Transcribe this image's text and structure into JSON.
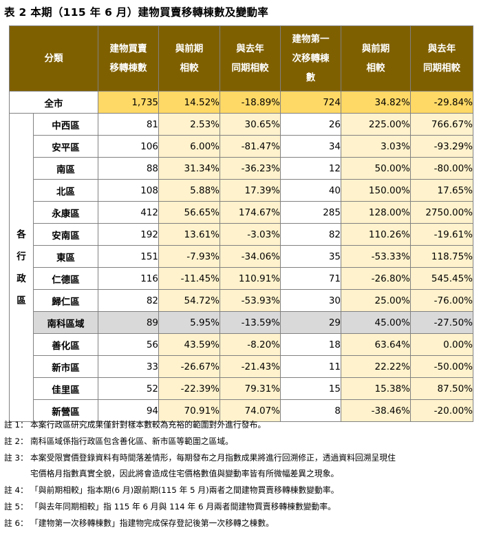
{
  "title": "表 2 本期（115 年 6 月）建物買賣移轉棟數及變動率",
  "header": {
    "category": "分類",
    "c1": [
      "建物買賣",
      "移轉棟數"
    ],
    "c2": [
      "與前期",
      "相較"
    ],
    "c3": [
      "與去年",
      "同期相較"
    ],
    "c4": [
      "建物第一",
      "次移轉棟",
      "數"
    ],
    "c5": [
      "與前期",
      "相較"
    ],
    "c6": [
      "與去年",
      "同期相較"
    ]
  },
  "group_label": [
    "各",
    "行",
    "政",
    "區"
  ],
  "total": {
    "name": "全市",
    "v1": "1,735",
    "v2": "14.52%",
    "v3": "-18.89%",
    "v4": "724",
    "v5": "34.82%",
    "v6": "-29.84%"
  },
  "rows": [
    {
      "name": "中西區",
      "v1": "81",
      "v2": "2.53%",
      "v3": "30.65%",
      "v4": "26",
      "v5": "225.00%",
      "v6": "766.67%"
    },
    {
      "name": "安平區",
      "v1": "106",
      "v2": "6.00%",
      "v3": "-81.47%",
      "v4": "34",
      "v5": "3.03%",
      "v6": "-93.29%"
    },
    {
      "name": "南區",
      "v1": "88",
      "v2": "31.34%",
      "v3": "-36.23%",
      "v4": "12",
      "v5": "50.00%",
      "v6": "-80.00%"
    },
    {
      "name": "北區",
      "v1": "108",
      "v2": "5.88%",
      "v3": "17.39%",
      "v4": "40",
      "v5": "150.00%",
      "v6": "17.65%"
    },
    {
      "name": "永康區",
      "v1": "412",
      "v2": "56.65%",
      "v3": "174.67%",
      "v4": "285",
      "v5": "128.00%",
      "v6": "2750.00%"
    },
    {
      "name": "安南區",
      "v1": "192",
      "v2": "13.61%",
      "v3": "-3.03%",
      "v4": "82",
      "v5": "110.26%",
      "v6": "-19.61%"
    },
    {
      "name": "東區",
      "v1": "151",
      "v2": "-7.93%",
      "v3": "-34.06%",
      "v4": "35",
      "v5": "-53.33%",
      "v6": "118.75%"
    },
    {
      "name": "仁德區",
      "v1": "116",
      "v2": "-11.45%",
      "v3": "110.91%",
      "v4": "71",
      "v5": "-26.80%",
      "v6": "545.45%"
    },
    {
      "name": "歸仁區",
      "v1": "82",
      "v2": "54.72%",
      "v3": "-53.93%",
      "v4": "30",
      "v5": "25.00%",
      "v6": "-76.00%"
    },
    {
      "name": "南科區域",
      "v1": "89",
      "v2": "5.95%",
      "v3": "-13.59%",
      "v4": "29",
      "v5": "45.00%",
      "v6": "-27.50%"
    },
    {
      "name": "善化區",
      "v1": "56",
      "v2": "43.59%",
      "v3": "-8.20%",
      "v4": "18",
      "v5": "63.64%",
      "v6": "0.00%"
    },
    {
      "name": "新市區",
      "v1": "33",
      "v2": "-26.67%",
      "v3": "-21.43%",
      "v4": "11",
      "v5": "22.22%",
      "v6": "-50.00%"
    },
    {
      "name": "佳里區",
      "v1": "52",
      "v2": "-22.39%",
      "v3": "79.31%",
      "v4": "15",
      "v5": "15.38%",
      "v6": "87.50%"
    },
    {
      "name": "新營區",
      "v1": "94",
      "v2": "70.91%",
      "v3": "74.07%",
      "v4": "8",
      "v5": "-38.46%",
      "v6": "-20.00%"
    }
  ],
  "notes": [
    {
      "label": "註 1：",
      "text": "本案行政區研究成果僅針對樣本數較為充裕的範圍對外進行發布。"
    },
    {
      "label": "註 2：",
      "text": "南科區域係指行政區包含善化區、新市區等範圍之區域。"
    },
    {
      "label": "註 3：",
      "text": "本案受限實價登錄資料有時間落差情形，每期發布之月指數成果將進行回溯修正，透過資料回溯呈現住"
    },
    {
      "label": "",
      "text": "宅價格月指數真實全貌，因此將會造成住宅價格數值與變動率皆有所微幅差異之現象。"
    },
    {
      "label": "註 4：",
      "text": "「與前期相較」指本期(6 月)跟前期(115 年 5 月)兩者之間建物買賣移轉棟數變動率。"
    },
    {
      "label": "註 5：",
      "text": "「與去年同期相較」指 115 年 6 月與 114 年 6 月兩者間建物買賣移轉棟數變動率。"
    },
    {
      "label": "註 6：",
      "text": "「建物第一次移轉棟數」指建物完成保存登記後第一次移轉之棟數。"
    }
  ]
}
